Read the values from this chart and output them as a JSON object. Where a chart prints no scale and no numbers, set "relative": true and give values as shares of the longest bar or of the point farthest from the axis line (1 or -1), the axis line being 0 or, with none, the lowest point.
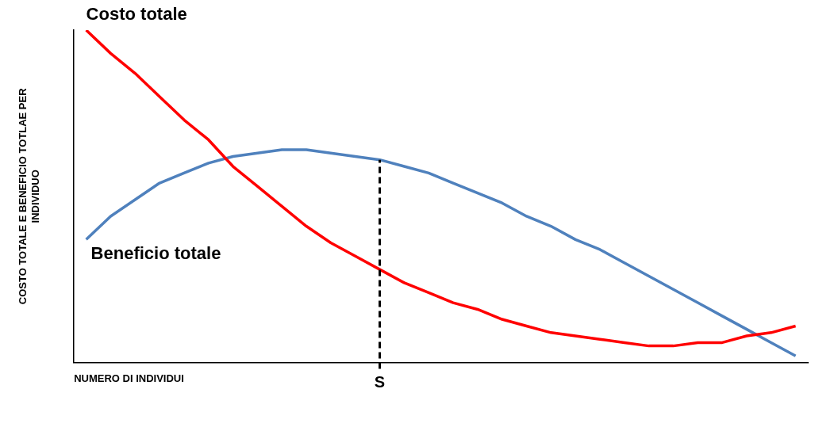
{
  "chart_data": {
    "type": "line",
    "relative": true,
    "xlabel": "NUMERO DI INDIVIDUI",
    "ylabel": "COSTO TOTALE E BENEFICIO TOTLAE PER INDIVIDUO",
    "categories": [
      null,
      null,
      null,
      null,
      null,
      null,
      null,
      null,
      null,
      null,
      null,
      null,
      null,
      null,
      null,
      null,
      null,
      null,
      null,
      null,
      null,
      null,
      null,
      null,
      null,
      null,
      null,
      null,
      null,
      null
    ],
    "series": [
      {
        "name": "Costo totale",
        "color": "#ff0000",
        "values": [
          1.0,
          0.93,
          0.87,
          0.8,
          0.73,
          0.67,
          0.59,
          0.53,
          0.47,
          0.41,
          0.36,
          0.32,
          0.28,
          0.24,
          0.21,
          0.18,
          0.16,
          0.13,
          0.11,
          0.09,
          0.08,
          0.07,
          0.06,
          0.05,
          0.05,
          0.06,
          0.06,
          0.08,
          0.09,
          0.11
        ]
      },
      {
        "name": "Beneficio totale",
        "color": "#4f81bd",
        "values": [
          0.37,
          0.44,
          0.49,
          0.54,
          0.57,
          0.6,
          0.62,
          0.63,
          0.64,
          0.64,
          0.63,
          0.62,
          0.61,
          0.59,
          0.57,
          0.54,
          0.51,
          0.48,
          0.44,
          0.41,
          0.37,
          0.34,
          0.3,
          0.26,
          0.22,
          0.18,
          0.14,
          0.1,
          0.06,
          0.02
        ]
      }
    ],
    "annotations": [
      "S"
    ],
    "grid": false,
    "legend": false,
    "marker": "none",
    "line_style": "solid"
  }
}
